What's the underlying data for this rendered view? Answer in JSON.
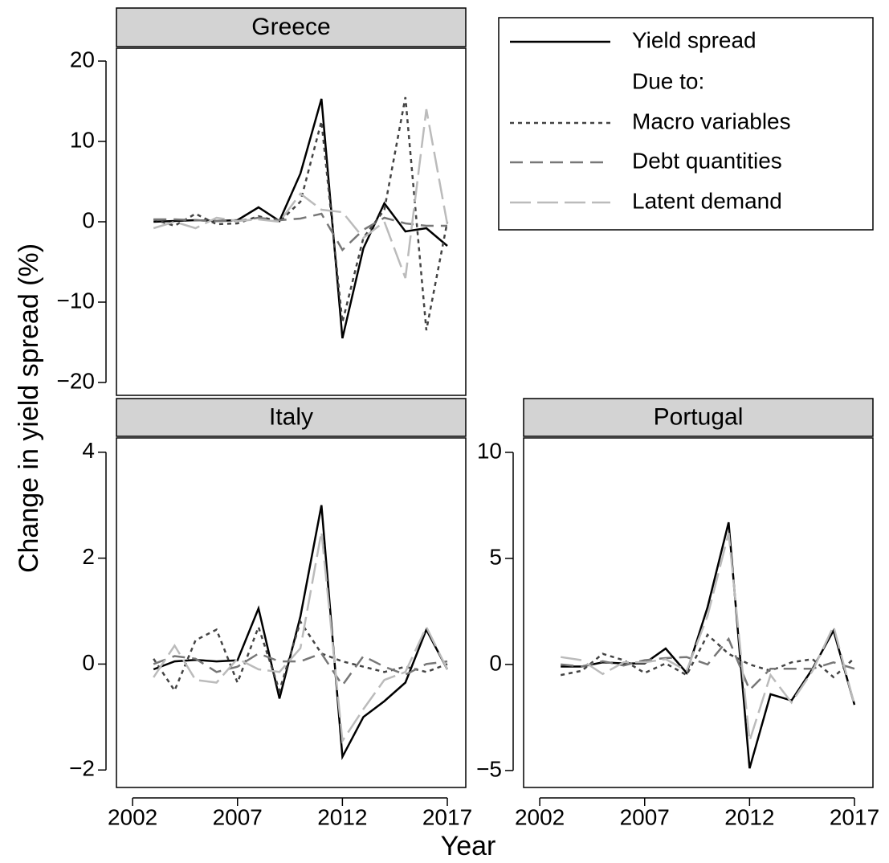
{
  "chart_data": [
    {
      "type": "line",
      "title": "Greece",
      "x": [
        2003,
        2004,
        2005,
        2006,
        2007,
        2008,
        2009,
        2010,
        2011,
        2012,
        2013,
        2014,
        2015,
        2016,
        2017
      ],
      "xlim": [
        2001.23,
        2017.88
      ],
      "ylim": [
        -21.6,
        21.6
      ],
      "yticks": [
        {
          "value": -20,
          "label": "−20"
        },
        {
          "value": -10,
          "label": "−10"
        },
        0,
        10,
        20
      ],
      "series": [
        {
          "name": "Yield spread",
          "color": "#000000",
          "dash": "solid",
          "values": [
            0,
            0.1,
            0.2,
            0.1,
            0.2,
            1.8,
            0.1,
            6,
            15.3,
            -14.5,
            -3.3,
            2.3,
            -1.2,
            -0.8,
            -3
          ]
        },
        {
          "name": "Macro variables",
          "color": "#444444",
          "dash": "dotted",
          "values": [
            0.3,
            -0.5,
            1,
            -0.3,
            -0.2,
            0.7,
            0,
            2.5,
            12.5,
            -12.5,
            -2,
            1.5,
            15.5,
            -13.5,
            0
          ]
        },
        {
          "name": "Debt quantities",
          "color": "#777777",
          "dash": "dashed",
          "values": [
            0.3,
            0.3,
            0.2,
            0.1,
            0.1,
            0.5,
            0.2,
            0.4,
            1,
            -3.5,
            -1,
            0.5,
            -0.2,
            -0.5,
            -0.5
          ]
        },
        {
          "name": "Latent demand",
          "color": "#bbbbbb",
          "dash": "longdash",
          "values": [
            -0.8,
            0,
            -0.8,
            0.5,
            0.1,
            0.3,
            0,
            3.5,
            1.5,
            1.2,
            -2,
            0,
            -7,
            14,
            -0.3
          ]
        }
      ]
    },
    {
      "type": "line",
      "title": "Italy",
      "x": [
        2003,
        2004,
        2005,
        2006,
        2007,
        2008,
        2009,
        2010,
        2011,
        2012,
        2013,
        2014,
        2015,
        2016,
        2017
      ],
      "xlim": [
        2001.23,
        2017.88
      ],
      "ylim": [
        -2.33,
        4.27
      ],
      "xticks": [
        2002,
        2007,
        2012,
        2017
      ],
      "yticks": [
        {
          "value": -2,
          "label": "−2"
        },
        0,
        2,
        4
      ],
      "series": [
        {
          "color": "#000000",
          "dash": "solid",
          "values": [
            -0.1,
            0.05,
            0.08,
            0.05,
            0.07,
            1.05,
            -0.65,
            0.9,
            3,
            -1.75,
            -1,
            -0.7,
            -0.35,
            0.65,
            -0.1
          ]
        },
        {
          "color": "#444444",
          "dash": "dotted",
          "values": [
            0.1,
            -0.5,
            0.45,
            0.65,
            -0.35,
            0.7,
            -0.5,
            0.8,
            0.2,
            0.05,
            -0.05,
            -0.15,
            -0.05,
            -0.15,
            0
          ]
        },
        {
          "color": "#777777",
          "dash": "dashed",
          "values": [
            0,
            0.15,
            0.1,
            -0.15,
            -0.05,
            0.2,
            0.05,
            0.05,
            0.2,
            -0.4,
            0.15,
            -0.05,
            -0.2,
            0,
            0.05
          ]
        },
        {
          "color": "#bbbbbb",
          "dash": "longdash",
          "values": [
            -0.25,
            0.35,
            -0.3,
            -0.35,
            0.1,
            -0.1,
            -0.15,
            0.3,
            2.5,
            -1.45,
            -0.85,
            -0.3,
            -0.15,
            0.7,
            -0.1
          ]
        }
      ]
    },
    {
      "type": "line",
      "title": "Portugal",
      "x": [
        2003,
        2004,
        2005,
        2006,
        2007,
        2008,
        2009,
        2010,
        2011,
        2012,
        2013,
        2014,
        2015,
        2016,
        2017
      ],
      "xlim": [
        2001.23,
        2017.88
      ],
      "ylim": [
        -5.8,
        10.68
      ],
      "xticks": [
        2002,
        2007,
        2012,
        2017
      ],
      "yticks": [
        {
          "value": -5,
          "label": "−5"
        },
        0,
        5,
        10
      ],
      "series": [
        {
          "color": "#000000",
          "dash": "solid",
          "values": [
            -0.1,
            -0.1,
            0.1,
            0.05,
            0.05,
            0.75,
            -0.4,
            2.7,
            6.7,
            -4.9,
            -1.4,
            -1.7,
            -0.2,
            1.6,
            -1.9
          ]
        },
        {
          "color": "#444444",
          "dash": "dotted",
          "values": [
            -0.5,
            -0.3,
            0.5,
            0.2,
            -0.4,
            0.05,
            -0.5,
            1.4,
            0.5,
            0,
            -0.3,
            0.1,
            0.25,
            -0.6,
            0.3
          ]
        },
        {
          "color": "#777777",
          "dash": "dashed",
          "values": [
            0,
            -0.1,
            0.15,
            -0.05,
            0.2,
            0.3,
            0.35,
            0,
            1.2,
            -1.2,
            -0.2,
            -0.2,
            -0.2,
            0.1,
            -0.2
          ]
        },
        {
          "color": "#bbbbbb",
          "dash": "longdash",
          "values": [
            0.35,
            0.2,
            -0.45,
            0.1,
            0.1,
            0.25,
            -0.3,
            2.3,
            6.2,
            -3.6,
            -0.5,
            -1.8,
            -0.3,
            1.8,
            -1.9
          ]
        }
      ]
    }
  ],
  "xlabel": "Year",
  "ylabel": "Change in yield spread (%)",
  "legend_heading": "Due to:"
}
